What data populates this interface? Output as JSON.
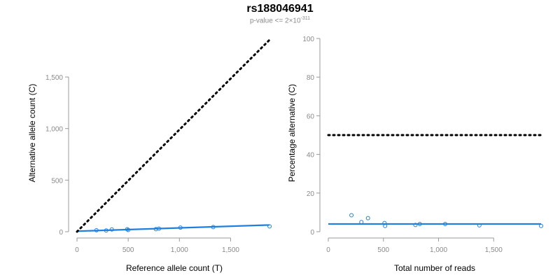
{
  "title": "rs188046941",
  "subtitle": {
    "prefix": "p-value <= 2×10",
    "exponent": "-311"
  },
  "colors": {
    "points": "#1f7fdf",
    "fit_line": "#1f7fdf",
    "reference_line": "#000000",
    "axis": "#9a9a9a",
    "tick_label": "#8a8a8a"
  },
  "chart_data": [
    {
      "type": "scatter",
      "xlabel": "Reference allele count (T)",
      "ylabel": "Alternative allele count (C)",
      "xlim": [
        0,
        1900
      ],
      "ylim": [
        0,
        1500
      ],
      "x_ticks": [
        0,
        500,
        1000,
        1500
      ],
      "x_tick_labels": [
        "0",
        "500",
        "1,000",
        "1,500"
      ],
      "y_ticks": [
        0,
        500,
        1000,
        1500
      ],
      "y_tick_labels": [
        "0",
        "500",
        "1,000",
        "1,500"
      ],
      "grid": false,
      "series": [
        {
          "kind": "points",
          "x": [
            190,
            285,
            340,
            490,
            500,
            770,
            800,
            1010,
            1330,
            1880
          ],
          "y": [
            14,
            12,
            22,
            24,
            17,
            25,
            30,
            40,
            45,
            52
          ]
        },
        {
          "kind": "fit_line",
          "x": [
            0,
            1880
          ],
          "y": [
            5,
            65
          ]
        },
        {
          "kind": "reference_line",
          "style": "dotted",
          "x": [
            0,
            1880
          ],
          "y": [
            0,
            1860
          ]
        }
      ]
    },
    {
      "type": "scatter",
      "xlabel": "Total number of reads",
      "ylabel": "Percentage alternative (C)",
      "xlim": [
        0,
        1930
      ],
      "ylim": [
        0,
        100
      ],
      "x_ticks": [
        0,
        500,
        1000,
        1500
      ],
      "x_tick_labels": [
        "0",
        "500",
        "1,000",
        "1,500"
      ],
      "y_ticks": [
        0,
        20,
        40,
        60,
        80,
        100
      ],
      "y_tick_labels": [
        "0",
        "20",
        "40",
        "60",
        "80",
        "100"
      ],
      "grid": false,
      "series": [
        {
          "kind": "points",
          "x": [
            210,
            300,
            360,
            510,
            515,
            790,
            830,
            1060,
            1370,
            1930
          ],
          "y": [
            8.5,
            5,
            7,
            4.5,
            3,
            3.5,
            4,
            4,
            3.3,
            3
          ]
        },
        {
          "kind": "fit_line",
          "x": [
            0,
            1930
          ],
          "y": [
            4,
            4
          ]
        },
        {
          "kind": "reference_line",
          "style": "dotted",
          "x": [
            0,
            1930
          ],
          "y": [
            50,
            50
          ]
        }
      ]
    }
  ]
}
